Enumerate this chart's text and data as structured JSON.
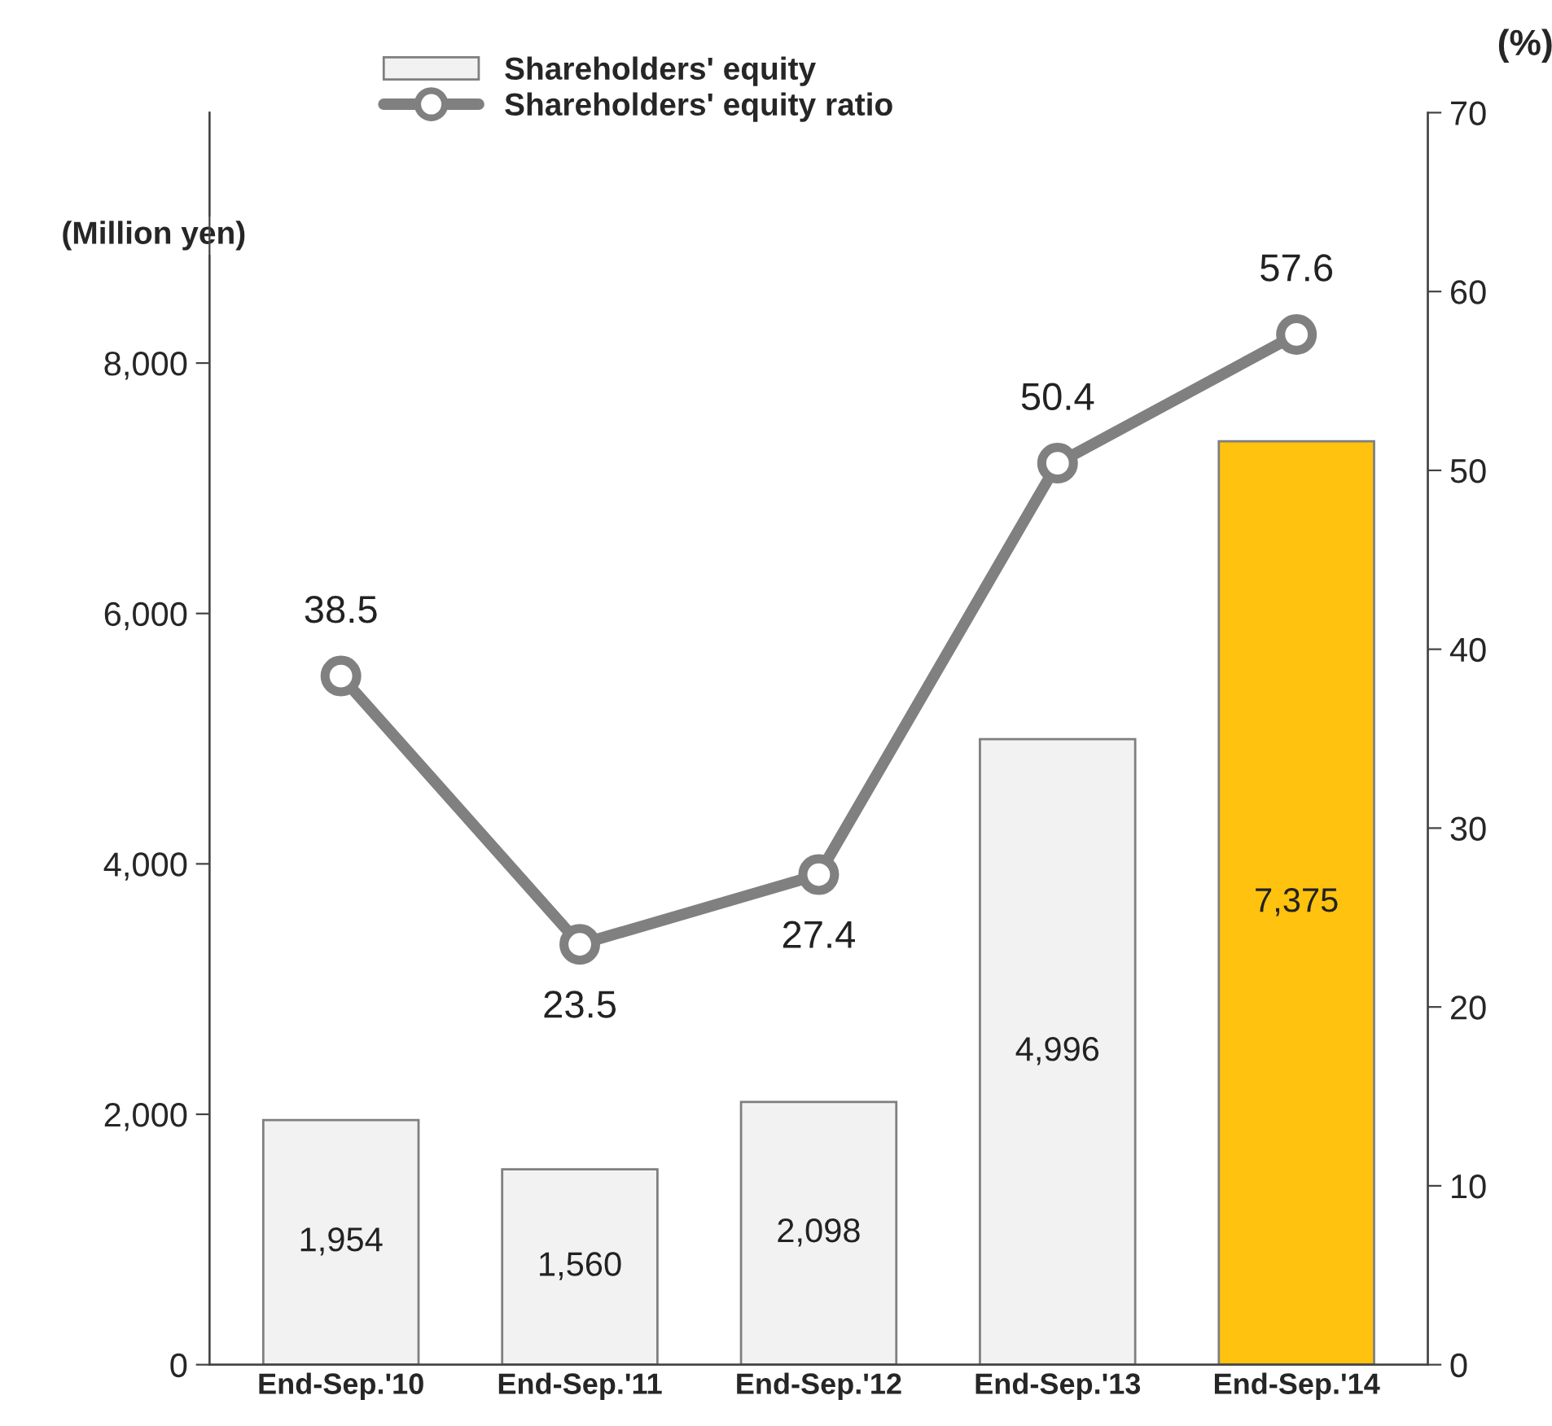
{
  "chart_data": {
    "type": "bar",
    "categories": [
      "End-Sep.'10",
      "End-Sep.'11",
      "End-Sep.'12",
      "End-Sep.'13",
      "End-Sep.'14"
    ],
    "ylabel": "(Million yen)",
    "y2label": "(%)",
    "ylim": [
      0,
      10000
    ],
    "yticks": [
      0,
      {
        "value": 2000,
        "label": "2,000"
      },
      {
        "value": 4000,
        "label": "4,000"
      },
      {
        "value": 6000,
        "label": "6,000"
      },
      {
        "value": 8000,
        "label": "8,000"
      }
    ],
    "y2lim": [
      0,
      70
    ],
    "y2ticks": [
      0,
      10,
      20,
      30,
      40,
      50,
      60,
      70
    ],
    "series": [
      {
        "name": "Shareholders' equity",
        "colors": [
          "#f2f2f2",
          "#f2f2f2",
          "#f2f2f2",
          "#f2f2f2",
          "#ffc20e"
        ],
        "values": [
          1954,
          1560,
          2098,
          4996,
          7375
        ],
        "value_labels": [
          "1,954",
          "1,560",
          "2,098",
          "4,996",
          "7,375"
        ]
      },
      {
        "name": "Shareholders' equity ratio",
        "type": "line",
        "axis": "y2",
        "color": "#808080",
        "marker": "circle",
        "values": [
          38.5,
          23.5,
          27.4,
          50.4,
          57.6
        ],
        "value_labels": [
          "38.5",
          "23.5",
          "27.4",
          "50.4",
          "57.6"
        ]
      }
    ],
    "legend": "top",
    "grid": false
  }
}
